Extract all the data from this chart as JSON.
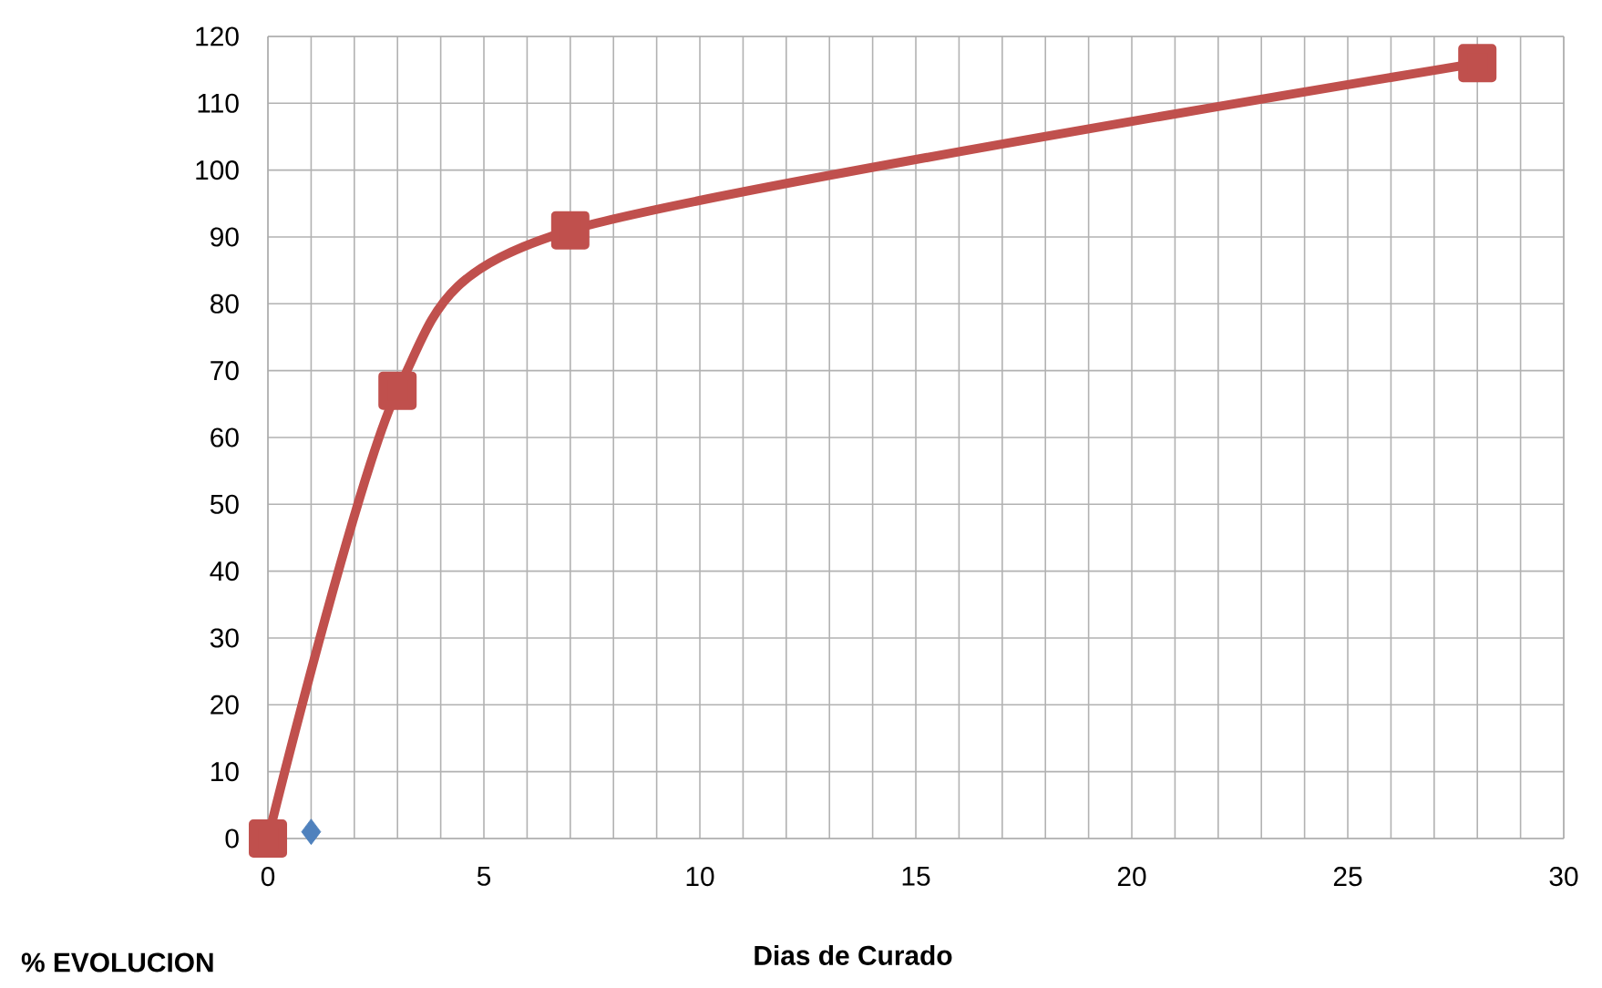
{
  "chart_data": {
    "type": "line",
    "xlabel": "Dias de Curado",
    "ylabel": "% EVOLUCION",
    "xlim": [
      0,
      30
    ],
    "ylim": [
      0,
      120
    ],
    "xticks": [
      0,
      5,
      10,
      15,
      20,
      25,
      30
    ],
    "yticks": [
      0,
      10,
      20,
      30,
      40,
      50,
      60,
      70,
      80,
      90,
      100,
      110,
      120
    ],
    "grid": true,
    "series": [
      {
        "color": "#c0504d",
        "marker": "square",
        "x": [
          0,
          3,
          7,
          28
        ],
        "values": [
          0,
          67,
          91,
          116
        ]
      },
      {
        "type": "scatter",
        "color": "#4f81bd",
        "marker": "diamond",
        "x": [
          1
        ],
        "values": [
          1
        ]
      }
    ]
  }
}
